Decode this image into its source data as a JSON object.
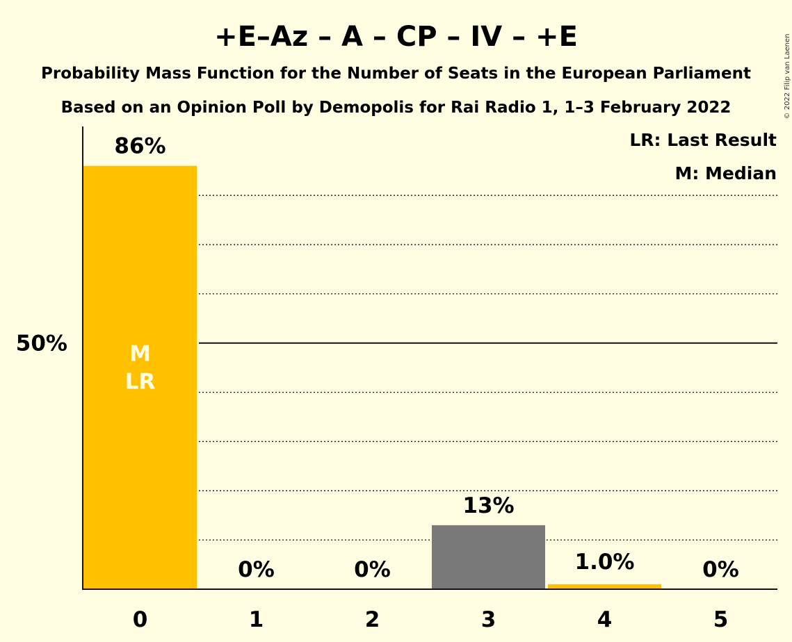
{
  "title": "+E–Az – A – CP – IV – +E",
  "subtitle": "Probability Mass Function for the Number of Seats in the European Parliament",
  "source_line": "Based on an Opinion Poll by Demopolis for Rai Radio 1, 1–3 February 2022",
  "legend": {
    "last_result": "LR: Last Result",
    "median": "M: Median"
  },
  "copyright": "© 2022 Filip van Laenen",
  "colors": {
    "background": "#FFFEE3",
    "primary_bar": "#FFC000",
    "secondary_bar": "#797979",
    "text": "#111111"
  },
  "chart_data": {
    "type": "bar",
    "x": [
      0,
      1,
      2,
      3,
      4,
      5
    ],
    "categories": [
      "0",
      "1",
      "2",
      "3",
      "4",
      "5"
    ],
    "values": [
      86,
      0,
      0,
      13,
      1.0,
      0
    ],
    "value_labels": [
      "86%",
      "0%",
      "0%",
      "13%",
      "1.0%",
      "0%"
    ],
    "bar_colors": [
      "#FFC000",
      "#FFC000",
      "#FFC000",
      "#797979",
      "#FFC000",
      "#FFC000"
    ],
    "in_bar_labels": [
      [
        "M",
        "LR"
      ],
      [],
      [],
      [],
      [],
      []
    ],
    "ylim": [
      0,
      94
    ],
    "y_tick_label": "50%",
    "y_tick_value": 50,
    "gridlines_dotted": [
      10,
      20,
      30,
      40,
      60,
      70,
      80
    ],
    "gridline_solid": 50,
    "xlabel": "",
    "ylabel": ""
  }
}
